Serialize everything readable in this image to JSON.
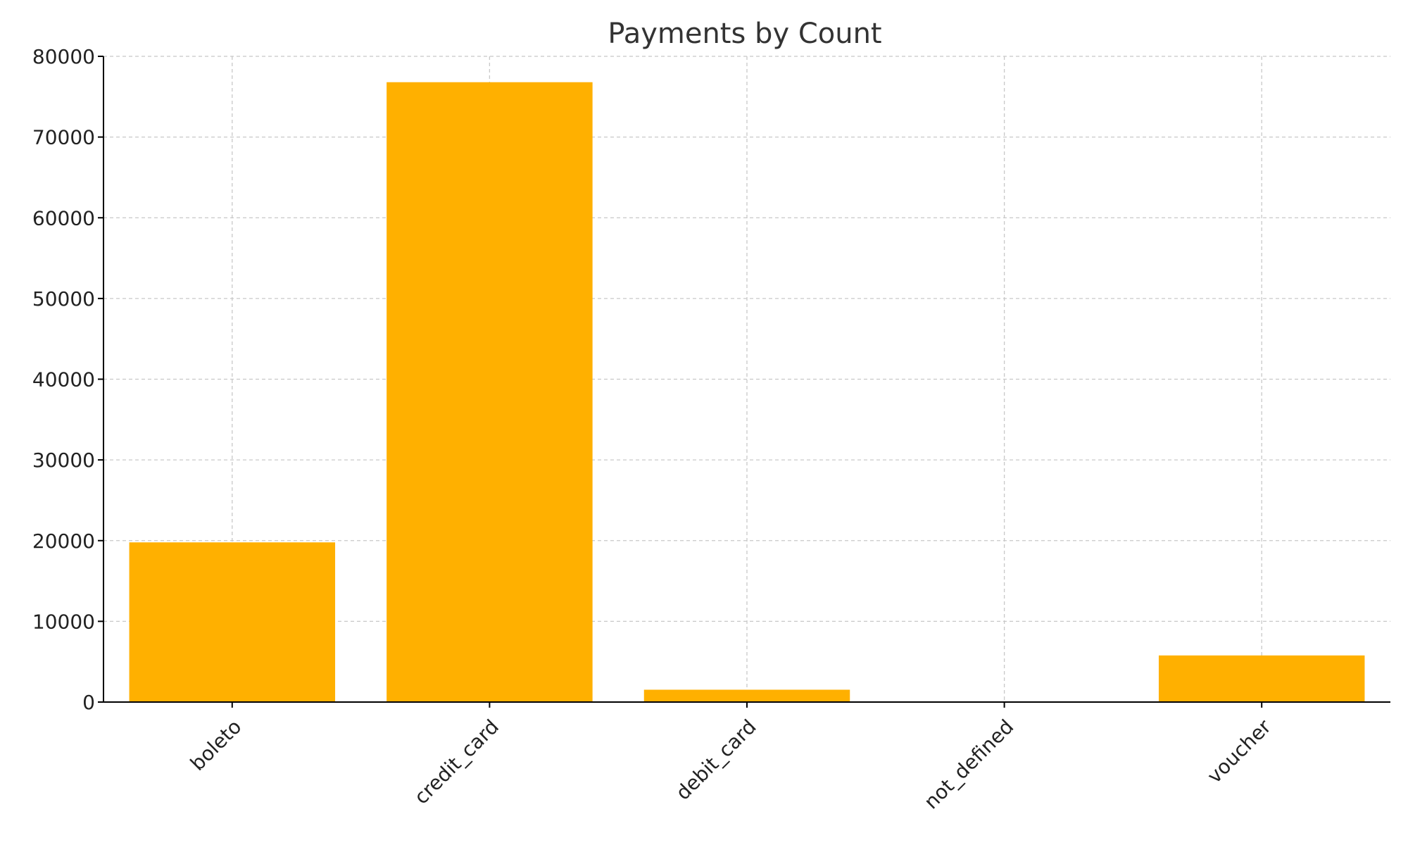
{
  "chart_data": {
    "type": "bar",
    "title": "Payments by Count",
    "xlabel": "",
    "ylabel": "",
    "categories": [
      "boleto",
      "credit_card",
      "debit_card",
      "not_defined",
      "voucher"
    ],
    "values": [
      19784,
      76795,
      1529,
      3,
      5775
    ],
    "ylim": [
      0,
      80000
    ],
    "yticks": [
      0,
      10000,
      20000,
      30000,
      40000,
      50000,
      60000,
      70000,
      80000
    ],
    "bar_color": "#FFB000",
    "grid": true,
    "legend": "none"
  }
}
